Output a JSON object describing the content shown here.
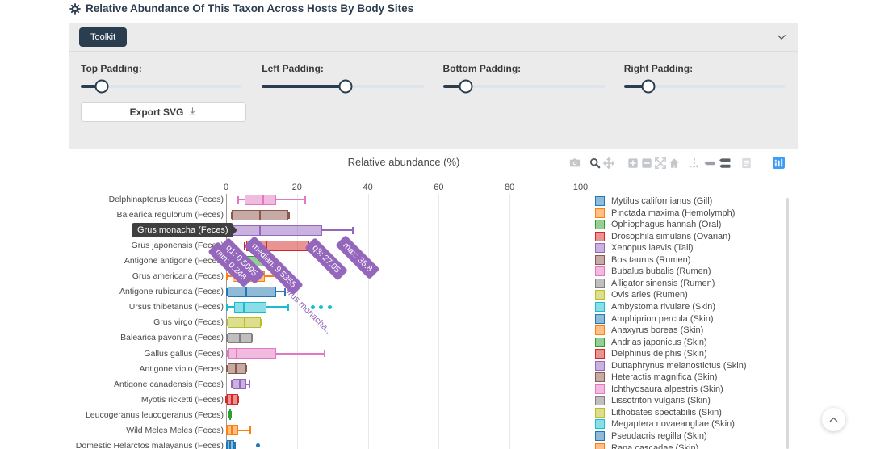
{
  "page": {
    "title": "Relative Abundance Of This Taxon Across Hosts By Body Sites"
  },
  "toolkit": {
    "button_label": "Toolkit",
    "sliders": [
      {
        "label": "Top Padding:",
        "value_pct": 13
      },
      {
        "label": "Left Padding:",
        "value_pct": 52
      },
      {
        "label": "Bottom Padding:",
        "value_pct": 14
      },
      {
        "label": "Right Padding:",
        "value_pct": 15
      }
    ],
    "export_label": "Export SVG"
  },
  "chart_data": {
    "type": "box",
    "orientation": "horizontal",
    "title": "Relative abundance (%)",
    "xlabel": "Relative abundance (%)",
    "x_ticks": [
      0,
      20,
      40,
      60,
      80,
      100
    ],
    "x_range": [
      0,
      102
    ],
    "grid": true,
    "rows": [
      {
        "label": "Delphinapterus leucas (Feces)",
        "color": "#e377c2",
        "min": 3.4,
        "q1": 5.2,
        "median": 10.5,
        "q3": 14.1,
        "max": 22.3,
        "outliers": []
      },
      {
        "label": "Balearica regulorum (Feces)",
        "color": "#8c564b",
        "min": 1.5,
        "q1": 1.7,
        "median": 9.6,
        "q3": 17.5,
        "max": 17.7,
        "outliers": []
      },
      {
        "label": "Grus monacha (Feces)",
        "color": "#9467bd",
        "min": 0.248,
        "q1": 0.5095,
        "median": 9.5355,
        "q3": 27.05,
        "max": 35.8,
        "outliers": []
      },
      {
        "label": "Grus japonensis (Feces)",
        "color": "#d62728",
        "min": 5.2,
        "q1": 5.7,
        "median": 11.5,
        "q3": 23.5,
        "max": 26.2,
        "outliers": []
      },
      {
        "label": "Antigone antigone (Feces)",
        "color": "#2ca02c",
        "min": 0.3,
        "q1": 0.6,
        "median": 4.3,
        "q3": 11.8,
        "max": 13.4,
        "outliers": []
      },
      {
        "label": "Grus americana (Feces)",
        "color": "#ff7f0e",
        "min": 0.2,
        "q1": 1.8,
        "median": 6.4,
        "q3": 10.9,
        "max": 14.8,
        "outliers": []
      },
      {
        "label": "Antigone rubicunda (Feces)",
        "color": "#1f77b4",
        "min": 0.3,
        "q1": 0.5,
        "median": 5.7,
        "q3": 14.1,
        "max": 16.6,
        "outliers": []
      },
      {
        "label": "Ursus thibetanus (Feces)",
        "color": "#17becf",
        "min": 0.2,
        "q1": 2.3,
        "median": 5.0,
        "q3": 11.4,
        "max": 17.5,
        "outliers": [
          24.4,
          26.7,
          29.2
        ]
      },
      {
        "label": "Grus virgo (Feces)",
        "color": "#bcbd22",
        "min": 0.4,
        "q1": 0.5,
        "median": 5.2,
        "q3": 9.8,
        "max": 9.9,
        "outliers": []
      },
      {
        "label": "Balearica pavonina (Feces)",
        "color": "#7f7f7f",
        "min": 0.2,
        "q1": 0.4,
        "median": 3.9,
        "q3": 7.3,
        "max": 7.4,
        "outliers": []
      },
      {
        "label": "Gallus gallus (Feces)",
        "color": "#e377c2",
        "min": 0.5,
        "q1": 0.7,
        "median": 3.0,
        "q3": 14.1,
        "max": 27.8,
        "outliers": []
      },
      {
        "label": "Antigone vipio (Feces)",
        "color": "#8c564b",
        "min": 0.2,
        "q1": 0.4,
        "median": 2.7,
        "q3": 5.7,
        "max": 5.8,
        "outliers": []
      },
      {
        "label": "Antigone canadensis (Feces)",
        "color": "#9467bd",
        "min": 1.7,
        "q1": 1.9,
        "median": 3.9,
        "q3": 5.7,
        "max": 6.5,
        "outliers": []
      },
      {
        "label": "Myotis ricketti (Feces)",
        "color": "#d62728",
        "min": 0.1,
        "q1": 0.2,
        "median": 1.6,
        "q3": 3.4,
        "max": 3.5,
        "outliers": []
      },
      {
        "label": "Leucogeranus leucogeranus (Feces)",
        "color": "#2ca02c",
        "min": 1.0,
        "q1": 1.0,
        "median": 1.15,
        "q3": 1.4,
        "max": 1.4,
        "outliers": []
      },
      {
        "label": "Wild Meles Meles (Feces)",
        "color": "#ff7f0e",
        "min": 0.2,
        "q1": 0.3,
        "median": 1.5,
        "q3": 3.4,
        "max": 6.8,
        "outliers": []
      },
      {
        "label": "Domestic Helarctos malayanus (Feces)",
        "color": "#1f77b4",
        "min": 0.2,
        "q1": 0.3,
        "median": 1.2,
        "q3": 2.3,
        "max": 2.4,
        "outliers": [
          9.1
        ]
      }
    ],
    "legend": {
      "position": "right",
      "items": [
        {
          "label": "Mytilus californianus (Gill)",
          "color": "#1f77b4"
        },
        {
          "label": "Pinctada maxima (Hemolymph)",
          "color": "#ff7f0e"
        },
        {
          "label": "Ophiophagus hannah (Oral)",
          "color": "#2ca02c"
        },
        {
          "label": "Drosophila simulans (Ovarian)",
          "color": "#d62728"
        },
        {
          "label": "Xenopus laevis (Tail)",
          "color": "#9467bd"
        },
        {
          "label": "Bos taurus (Rumen)",
          "color": "#8c564b"
        },
        {
          "label": "Bubalus bubalis (Rumen)",
          "color": "#e377c2"
        },
        {
          "label": "Alligator sinensis (Rumen)",
          "color": "#7f7f7f"
        },
        {
          "label": "Ovis aries (Rumen)",
          "color": "#bcbd22"
        },
        {
          "label": "Ambystoma rivulare (Skin)",
          "color": "#17becf"
        },
        {
          "label": "Amphiprion percula (Skin)",
          "color": "#1f77b4"
        },
        {
          "label": "Anaxyrus boreas (Skin)",
          "color": "#ff7f0e"
        },
        {
          "label": "Andrias japonicus (Skin)",
          "color": "#2ca02c"
        },
        {
          "label": "Delphinus delphis (Skin)",
          "color": "#d62728"
        },
        {
          "label": "Duttaphrynus melanostictus (Skin)",
          "color": "#9467bd"
        },
        {
          "label": "Heteractis magnifica (Skin)",
          "color": "#8c564b"
        },
        {
          "label": "Ichthyosaura alpestris (Skin)",
          "color": "#e377c2"
        },
        {
          "label": "Lissotriton vulgaris (Skin)",
          "color": "#7f7f7f"
        },
        {
          "label": "Lithobates spectabilis (Skin)",
          "color": "#bcbd22"
        },
        {
          "label": "Megaptera novaeangliae (Skin)",
          "color": "#17becf"
        },
        {
          "label": "Pseudacris regilla (Skin)",
          "color": "#1f77b4"
        },
        {
          "label": "Rana cascadae (Skin)",
          "color": "#ff7f0e"
        }
      ]
    },
    "hover": {
      "axis_label": "Grus monacha (Feces)",
      "stats": {
        "min": 0.248,
        "q1": 0.5095,
        "median": 9.5355,
        "q3": 27.05,
        "max": 35.8
      },
      "flags": [
        "min: 0.248",
        "q1: 0.5095",
        "median: 9.5355",
        "q3: 27.05",
        "max: 35.8"
      ],
      "trace_label": "Grus monacha...",
      "flag_color": "#9467bd",
      "label_bg": "#3f3f3f"
    }
  },
  "colors": {
    "accent_navy": "#2c3e50",
    "panel_gray": "#ebebeb",
    "plotly_logo_blue": "#3d9df5"
  }
}
